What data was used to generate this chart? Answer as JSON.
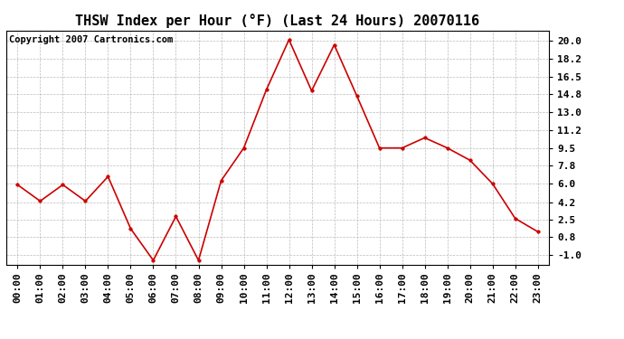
{
  "title": "THSW Index per Hour (°F) (Last 24 Hours) 20070116",
  "copyright_text": "Copyright 2007 Cartronics.com",
  "x_labels": [
    "00:00",
    "01:00",
    "02:00",
    "03:00",
    "04:00",
    "05:00",
    "06:00",
    "07:00",
    "08:00",
    "09:00",
    "10:00",
    "11:00",
    "12:00",
    "13:00",
    "14:00",
    "15:00",
    "16:00",
    "17:00",
    "18:00",
    "19:00",
    "20:00",
    "21:00",
    "22:00",
    "23:00"
  ],
  "y_values": [
    5.9,
    4.3,
    5.9,
    4.3,
    6.7,
    1.6,
    -1.5,
    2.8,
    -1.5,
    6.3,
    9.5,
    15.2,
    20.1,
    15.1,
    19.6,
    14.6,
    9.5,
    9.5,
    10.5,
    9.5,
    8.3,
    6.0,
    2.6,
    1.3
  ],
  "line_color": "#cc0000",
  "marker_color": "#cc0000",
  "background_color": "#ffffff",
  "grid_color": "#bbbbbb",
  "yticks": [
    20.0,
    18.2,
    16.5,
    14.8,
    13.0,
    11.2,
    9.5,
    7.8,
    6.0,
    4.2,
    2.5,
    0.8,
    -1.0
  ],
  "ylim": [
    -1.9,
    21.0
  ],
  "title_fontsize": 11,
  "tick_fontsize": 8,
  "copyright_fontsize": 7.5
}
